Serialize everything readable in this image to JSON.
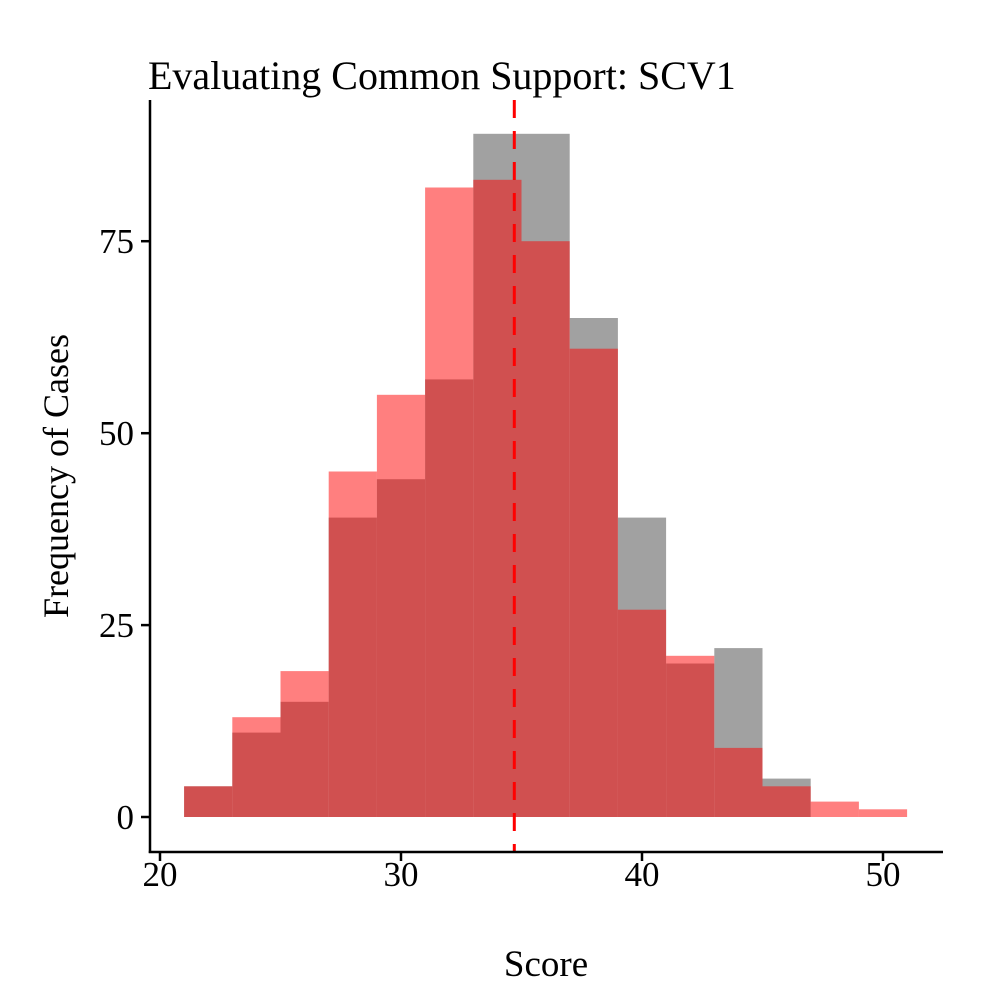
{
  "title": "Evaluating Common Support: SCV1",
  "chart_data": {
    "type": "histogram",
    "title": "Evaluating Common Support: SCV1",
    "xlabel": "Score",
    "ylabel": "Frequency of Cases",
    "bin_start": 21,
    "bin_width": 2,
    "bin_edges": [
      21,
      23,
      25,
      27,
      29,
      31,
      33,
      35,
      37,
      39,
      41,
      43,
      45,
      47,
      49,
      51
    ],
    "series": [
      {
        "name": "gray-histogram",
        "color": "#A1A1A1",
        "alpha": 1.0,
        "values": [
          4,
          11,
          15,
          39,
          44,
          57,
          89,
          89,
          65,
          39,
          20,
          22,
          5,
          0,
          0
        ]
      },
      {
        "name": "red-histogram",
        "color": "#FF0000",
        "alpha": 0.5,
        "values": [
          4,
          13,
          19,
          45,
          55,
          82,
          83,
          75,
          61,
          27,
          21,
          9,
          4,
          2,
          1
        ]
      }
    ],
    "overlap_rendered_color": "#CF5050",
    "red_alone_rendered_color": "#FF8080",
    "x_ticks": [
      20,
      30,
      40,
      50
    ],
    "y_ticks": [
      0,
      25,
      50,
      75
    ],
    "xlim": [
      19.6,
      52.9
    ],
    "ylim": [
      -4.5,
      93.5
    ],
    "grid": "off",
    "legend": "none",
    "vline": {
      "x": 34.7,
      "style": "dashed",
      "color": "#FF0000"
    },
    "axis_color": "#000000"
  }
}
